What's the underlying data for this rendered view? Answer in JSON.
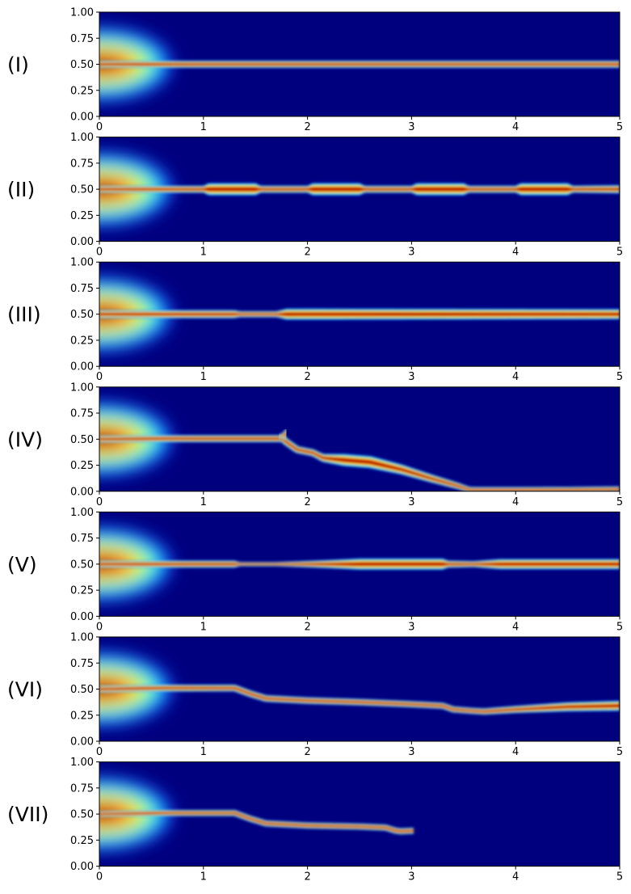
{
  "chart_data": [
    {
      "type": "heatmap",
      "label": "(I)",
      "xlim": [
        0,
        5
      ],
      "ylim": [
        0,
        1
      ],
      "xticks": [
        "0",
        "1",
        "2",
        "3",
        "4",
        "5"
      ],
      "yticks": [
        "0.00",
        "0.25",
        "0.50",
        "0.75",
        "1.00"
      ],
      "colormap": "jet",
      "source": {
        "x": 0.0,
        "y": 0.5
      },
      "path_x": [
        0,
        5
      ],
      "path_y": [
        0.5,
        0.5
      ],
      "width_x": [
        0,
        0.9,
        5
      ],
      "width_y": [
        0.035,
        0.035,
        0.035
      ],
      "end_x": 5
    },
    {
      "type": "heatmap",
      "label": "(II)",
      "xlim": [
        0,
        5
      ],
      "ylim": [
        0,
        1
      ],
      "xticks": [
        "0",
        "1",
        "2",
        "3",
        "4",
        "5"
      ],
      "yticks": [
        "0.00",
        "0.25",
        "0.50",
        "0.75",
        "1.00"
      ],
      "colormap": "jet",
      "source": {
        "x": 0.0,
        "y": 0.5
      },
      "path_x": [
        0,
        5
      ],
      "path_y": [
        0.5,
        0.5
      ],
      "width_x": [
        0,
        1.0,
        1.05,
        1.5,
        1.55,
        2.0,
        2.05,
        2.5,
        2.55,
        3.0,
        3.05,
        3.5,
        3.55,
        4.0,
        4.05,
        4.5,
        4.55,
        5.0
      ],
      "width_y": [
        0.035,
        0.035,
        0.06,
        0.06,
        0.035,
        0.035,
        0.06,
        0.06,
        0.035,
        0.035,
        0.06,
        0.06,
        0.035,
        0.035,
        0.06,
        0.06,
        0.035,
        0.04
      ],
      "end_x": 5
    },
    {
      "type": "heatmap",
      "label": "(III)",
      "xlim": [
        0,
        5
      ],
      "ylim": [
        0,
        1
      ],
      "xticks": [
        "0",
        "1",
        "2",
        "3",
        "4",
        "5"
      ],
      "yticks": [
        "0.00",
        "0.25",
        "0.50",
        "0.75",
        "1.00"
      ],
      "colormap": "jet",
      "source": {
        "x": 0.0,
        "y": 0.5
      },
      "path_x": [
        0,
        5
      ],
      "path_y": [
        0.5,
        0.5
      ],
      "width_x": [
        0,
        1.3,
        1.35,
        1.7,
        1.8,
        5
      ],
      "width_y": [
        0.04,
        0.04,
        0.03,
        0.03,
        0.055,
        0.05
      ],
      "end_x": 5
    },
    {
      "type": "heatmap",
      "label": "(IV)",
      "xlim": [
        0,
        5
      ],
      "ylim": [
        0,
        1
      ],
      "xticks": [
        "0",
        "1",
        "2",
        "3",
        "4",
        "5"
      ],
      "yticks": [
        "0.00",
        "0.25",
        "0.50",
        "0.75",
        "1.00"
      ],
      "colormap": "jet",
      "source": {
        "x": 0.0,
        "y": 0.5
      },
      "path_x": [
        0,
        0.6,
        1.76,
        1.8,
        1.9,
        2.05,
        2.15,
        2.35,
        2.6,
        2.9,
        3.2,
        3.45,
        3.55,
        3.6,
        4.0,
        4.5,
        5.0
      ],
      "path_y": [
        0.5,
        0.505,
        0.505,
        0.47,
        0.4,
        0.37,
        0.32,
        0.3,
        0.28,
        0.21,
        0.12,
        0.05,
        0.015,
        0.012,
        0.012,
        0.013,
        0.018
      ],
      "width_x": [
        0,
        2.1,
        2.35,
        2.6,
        3.0,
        3.5,
        5.0
      ],
      "width_y": [
        0.035,
        0.035,
        0.06,
        0.06,
        0.045,
        0.03,
        0.03
      ],
      "branch": {
        "x": [
          1.73,
          1.77,
          1.79,
          1.78
        ],
        "y": [
          0.52,
          0.545,
          0.565,
          0.51
        ]
      },
      "end_x": 5
    },
    {
      "type": "heatmap",
      "label": "(V)",
      "xlim": [
        0,
        5
      ],
      "ylim": [
        0,
        1
      ],
      "xticks": [
        "0",
        "1",
        "2",
        "3",
        "4",
        "5"
      ],
      "yticks": [
        "0.00",
        "0.25",
        "0.50",
        "0.75",
        "1.00"
      ],
      "colormap": "jet",
      "source": {
        "x": 0.0,
        "y": 0.5
      },
      "path_x": [
        0,
        5
      ],
      "path_y": [
        0.5,
        0.5
      ],
      "width_x": [
        0,
        1.3,
        1.35,
        1.7,
        2.2,
        2.5,
        3.3,
        3.35,
        3.6,
        3.85,
        5.0
      ],
      "width_y": [
        0.035,
        0.035,
        0.02,
        0.02,
        0.04,
        0.055,
        0.055,
        0.035,
        0.03,
        0.05,
        0.05
      ],
      "end_x": 5
    },
    {
      "type": "heatmap",
      "label": "(VI)",
      "xlim": [
        0,
        5
      ],
      "ylim": [
        0,
        1
      ],
      "xticks": [
        "0",
        "1",
        "2",
        "3",
        "4",
        "5"
      ],
      "yticks": [
        "0.00",
        "0.25",
        "0.50",
        "0.75",
        "1.00"
      ],
      "colormap": "jet",
      "source": {
        "x": 0.0,
        "y": 0.5
      },
      "path_x": [
        0,
        0.6,
        1.3,
        1.45,
        1.6,
        2.0,
        2.5,
        3.0,
        3.3,
        3.4,
        3.6,
        3.7,
        4.0,
        4.5,
        5.0
      ],
      "path_y": [
        0.5,
        0.51,
        0.51,
        0.455,
        0.41,
        0.39,
        0.375,
        0.355,
        0.34,
        0.305,
        0.29,
        0.285,
        0.305,
        0.33,
        0.34
      ],
      "width_x": [
        0,
        3.6,
        4.0,
        4.5,
        5.0
      ],
      "width_y": [
        0.035,
        0.03,
        0.035,
        0.045,
        0.05
      ],
      "end_x": 5
    },
    {
      "type": "heatmap",
      "label": "(VII)",
      "xlim": [
        0,
        5
      ],
      "ylim": [
        0,
        1
      ],
      "xticks": [
        "0",
        "1",
        "2",
        "3",
        "4",
        "5"
      ],
      "yticks": [
        "0.00",
        "0.25",
        "0.50",
        "0.75",
        "1.00"
      ],
      "colormap": "jet",
      "source": {
        "x": 0.0,
        "y": 0.5
      },
      "path_x": [
        0,
        0.6,
        1.3,
        1.45,
        1.6,
        2.0,
        2.5,
        2.75,
        2.85,
        2.9,
        3.02
      ],
      "path_y": [
        0.5,
        0.51,
        0.51,
        0.455,
        0.41,
        0.39,
        0.38,
        0.37,
        0.34,
        0.335,
        0.34
      ],
      "width_x": [
        0,
        3.02
      ],
      "width_y": [
        0.03,
        0.03
      ],
      "end_x": 3.02
    }
  ]
}
